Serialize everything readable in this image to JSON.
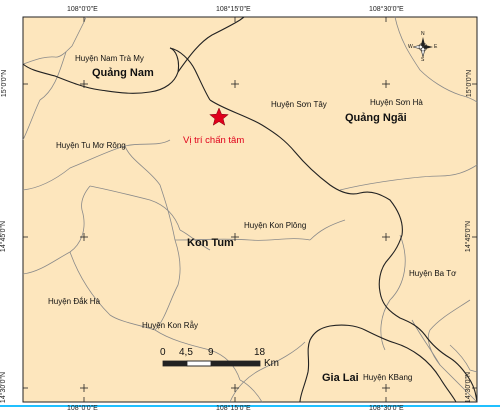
{
  "map": {
    "graticule": {
      "lon_labels": [
        "108°0'0\"E",
        "108°15'0\"E",
        "108°30'0\"E"
      ],
      "lat_labels": [
        "15°0'0\"N",
        "14°45'0\"N",
        "14°30'0\"N"
      ]
    },
    "provinces": {
      "quang_nam": "Quảng Nam",
      "quang_ngai": "Quảng Ngãi",
      "kon_tum": "Kon Tum",
      "gia_lai": "Gia Lai"
    },
    "districts": {
      "nam_tra_my": "Huyện Nam Trà My",
      "son_tay": "Huyện Sơn Tây",
      "son_ha": "Huyện Sơn Hà",
      "tu_mo_rong": "Huyện Tu Mơ Rông",
      "kon_plong": "Huyện Kon Plông",
      "ba_to": "Huyện Ba Tơ",
      "dak_ha": "Huyện Đắk Hà",
      "kon_ray": "Huyện Kon Rẫy",
      "kbang": "Huyện KBang"
    },
    "epicenter": {
      "label": "Vị trí chấn tâm",
      "color": "#e0001b"
    },
    "scale_bar": {
      "ticks": [
        "0",
        "4,5",
        "9",
        "18"
      ],
      "unit": "Km"
    },
    "colors": {
      "land": "#fde6bd",
      "boundary": "#8a8a8a",
      "province_boundary": "#222222",
      "frame_highlight": "#20c0ff"
    },
    "north_arrow": {
      "icon": "compass-rose-icon",
      "letters": [
        "N",
        "S",
        "E",
        "W"
      ]
    }
  }
}
